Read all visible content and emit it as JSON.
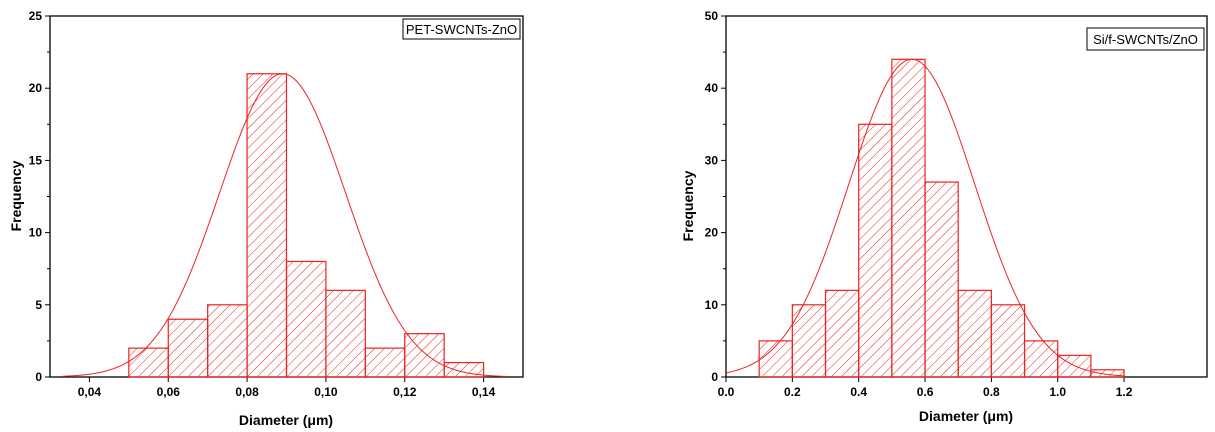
{
  "chart_data": [
    {
      "type": "bar",
      "legend": "PET-SWCNTs-ZnO",
      "legend_position": "top-right",
      "xlabel": "Diameter (μm)",
      "ylabel": "Frequency",
      "xlim": [
        0.03,
        0.15
      ],
      "ylim": [
        0,
        25
      ],
      "xticks": [
        0.04,
        0.06,
        0.08,
        0.1,
        0.12,
        0.14
      ],
      "xtick_labels": [
        "0,04",
        "0,06",
        "0,08",
        "0,10",
        "0,12",
        "0,14"
      ],
      "yticks": [
        0,
        5,
        10,
        15,
        20,
        25
      ],
      "bin_width": 0.01,
      "bins": [
        {
          "start": 0.05,
          "value": 2
        },
        {
          "start": 0.06,
          "value": 4
        },
        {
          "start": 0.07,
          "value": 5
        },
        {
          "start": 0.08,
          "value": 21
        },
        {
          "start": 0.09,
          "value": 8
        },
        {
          "start": 0.1,
          "value": 6
        },
        {
          "start": 0.11,
          "value": 2
        },
        {
          "start": 0.12,
          "value": 3
        },
        {
          "start": 0.13,
          "value": 1
        }
      ],
      "fit": {
        "type": "gaussian",
        "mean": 0.089,
        "sigma": 0.016,
        "peak": 21,
        "range": [
          0.033,
          0.146
        ]
      },
      "color": "#ee2222",
      "grid": false
    },
    {
      "type": "bar",
      "legend": "Si/f-SWCNTs/ZnO",
      "legend_position": "top-right",
      "xlabel": "Diameter (μm)",
      "ylabel": "Frequency",
      "xlim": [
        0.0,
        1.45
      ],
      "ylim": [
        0,
        50
      ],
      "xticks": [
        0.0,
        0.2,
        0.4,
        0.6,
        0.8,
        1.0,
        1.2
      ],
      "xtick_labels": [
        "0.0",
        "0.2",
        "0.4",
        "0.6",
        "0.8",
        "1.0",
        "1.2"
      ],
      "yticks": [
        0,
        10,
        20,
        30,
        40,
        50
      ],
      "bin_width": 0.1,
      "bins": [
        {
          "start": 0.1,
          "value": 5
        },
        {
          "start": 0.2,
          "value": 10
        },
        {
          "start": 0.3,
          "value": 12
        },
        {
          "start": 0.4,
          "value": 35
        },
        {
          "start": 0.5,
          "value": 44
        },
        {
          "start": 0.6,
          "value": 27
        },
        {
          "start": 0.7,
          "value": 12
        },
        {
          "start": 0.8,
          "value": 10
        },
        {
          "start": 0.9,
          "value": 5
        },
        {
          "start": 1.0,
          "value": 3
        },
        {
          "start": 1.1,
          "value": 1
        }
      ],
      "fit": {
        "type": "gaussian",
        "mean": 0.56,
        "sigma": 0.19,
        "peak": 44,
        "range": [
          0.0,
          1.2
        ]
      },
      "color": "#ee2222",
      "grid": false
    }
  ]
}
